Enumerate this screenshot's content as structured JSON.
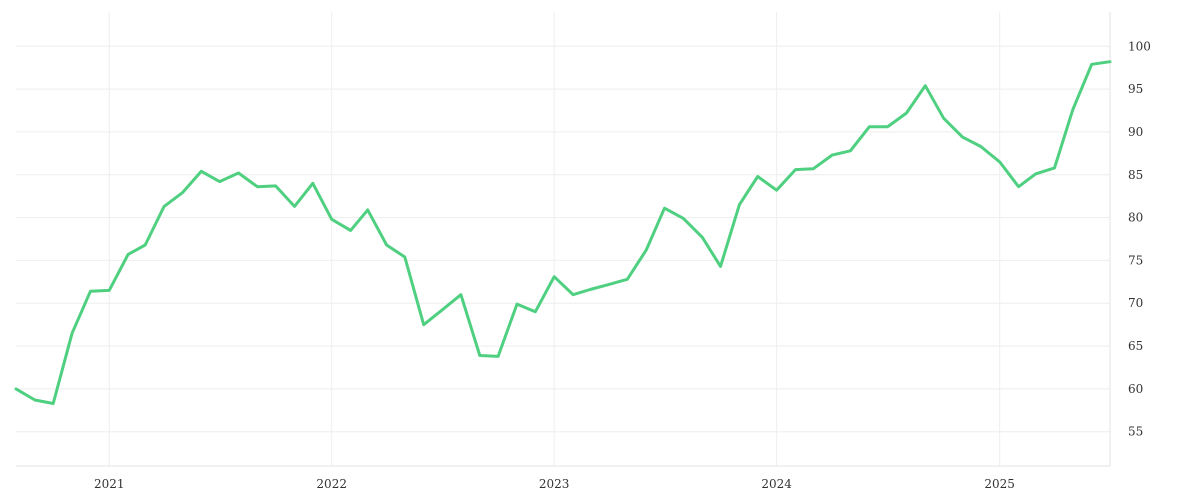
{
  "chart_data": {
    "type": "line",
    "title": "",
    "xlabel": "",
    "ylabel": "",
    "grid": true,
    "line_color": "#4fd080",
    "grid_color": "#eeeeee",
    "axis_color": "#e3e3e3",
    "xlim": [
      "2020-08-01",
      "2025-07-01"
    ],
    "ylim": [
      51,
      104
    ],
    "y_ticks": [
      55,
      60,
      65,
      70,
      75,
      80,
      85,
      90,
      95,
      100
    ],
    "x_ticks": [
      {
        "date": "2021-01-01",
        "label": "2021"
      },
      {
        "date": "2022-01-01",
        "label": "2022"
      },
      {
        "date": "2023-01-01",
        "label": "2023"
      },
      {
        "date": "2024-01-01",
        "label": "2024"
      },
      {
        "date": "2025-01-01",
        "label": "2025"
      }
    ],
    "series": [
      {
        "x": [
          "2020-08-01",
          "2020-09-01",
          "2020-10-01",
          "2020-11-01",
          "2020-12-01",
          "2021-01-01",
          "2021-02-01",
          "2021-03-01",
          "2021-04-01",
          "2021-05-01",
          "2021-06-01",
          "2021-07-01",
          "2021-08-01",
          "2021-09-01",
          "2021-10-01",
          "2021-11-01",
          "2021-12-01",
          "2022-01-01",
          "2022-02-01",
          "2022-03-01",
          "2022-04-01",
          "2022-05-01",
          "2022-06-01",
          "2022-07-01",
          "2022-08-01",
          "2022-09-01",
          "2022-10-01",
          "2022-11-01",
          "2022-12-01",
          "2023-01-01",
          "2023-02-01",
          "2023-03-01",
          "2023-04-01",
          "2023-05-01",
          "2023-06-01",
          "2023-07-01",
          "2023-08-01",
          "2023-09-01",
          "2023-10-01",
          "2023-11-01",
          "2023-12-01",
          "2024-01-01",
          "2024-02-01",
          "2024-03-01",
          "2024-04-01",
          "2024-05-01",
          "2024-06-01",
          "2024-07-01",
          "2024-08-01",
          "2024-09-01",
          "2024-10-01",
          "2024-11-01",
          "2024-12-01",
          "2025-01-01",
          "2025-02-01",
          "2025-03-01",
          "2025-04-01",
          "2025-05-01",
          "2025-06-01",
          "2025-07-01"
        ],
        "y": [
          60.0,
          58.7,
          58.3,
          66.5,
          71.4,
          71.5,
          75.7,
          76.8,
          81.3,
          82.9,
          85.4,
          84.2,
          85.2,
          83.6,
          83.7,
          81.3,
          84.0,
          79.8,
          78.5,
          80.9,
          76.8,
          75.4,
          67.5,
          69.2,
          71.0,
          63.9,
          63.8,
          69.9,
          69.0,
          73.1,
          71.0,
          71.6,
          72.2,
          72.8,
          76.2,
          81.1,
          79.9,
          77.7,
          74.3,
          81.5,
          84.8,
          83.2,
          85.6,
          85.7,
          87.3,
          87.8,
          90.6,
          90.6,
          92.2,
          95.4,
          91.6,
          89.4,
          88.3,
          86.5,
          83.6,
          85.1,
          85.8,
          92.6,
          97.9,
          98.2
        ]
      }
    ]
  }
}
